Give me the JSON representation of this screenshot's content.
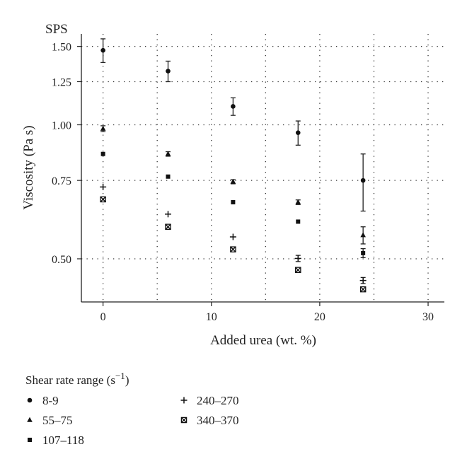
{
  "chart_data": {
    "type": "scatter",
    "corner_label": "SPS",
    "xlabel": "Added urea (wt. %)",
    "ylabel": "Viscosity (Pa s)",
    "x_ticks": [
      0,
      10,
      20,
      30
    ],
    "y_ticks": [
      0.5,
      0.75,
      1.0,
      1.25,
      1.5
    ],
    "y_tick_labels": [
      "0.50",
      "0.75",
      "1.00",
      "1.25",
      "1.50"
    ],
    "xlim": [
      -2,
      31.5
    ],
    "ylim": [
      0.4,
      1.6
    ],
    "y_scale": "log",
    "grid": "dotted, at x = 0, 5, 10, 15, 20, 25, 30 and at y ticks",
    "x": [
      0,
      6,
      12,
      18,
      24
    ],
    "series": [
      {
        "name": "8-9",
        "marker": "circle",
        "values": [
          1.47,
          1.32,
          1.1,
          0.96,
          0.75
        ],
        "error": [
          0.09,
          0.07,
          0.05,
          0.06,
          0.11
        ]
      },
      {
        "name": "55–75",
        "marker": "triangle",
        "values": [
          0.98,
          0.86,
          0.745,
          0.67,
          0.565
        ],
        "error": [
          0.015,
          0.01,
          0.008,
          0.008,
          0.025
        ]
      },
      {
        "name": "107–118",
        "marker": "square",
        "values": [
          0.86,
          0.765,
          0.67,
          0.606,
          0.515
        ],
        "error": [
          0,
          0,
          0,
          0,
          0.012
        ]
      },
      {
        "name": "240–270",
        "marker": "plus",
        "values": [
          0.725,
          0.63,
          0.56,
          0.501,
          0.447
        ],
        "error": [
          0,
          0,
          0,
          0.008,
          0.007
        ]
      },
      {
        "name": "340–370",
        "marker": "boxed-x",
        "values": [
          0.68,
          0.59,
          0.525,
          0.472,
          0.427
        ],
        "error": [
          0,
          0,
          0,
          0,
          0
        ]
      }
    ],
    "legend": {
      "title": "Shear rate range (s",
      "title_exponent": "−1",
      "title_close": ")",
      "placement": "bottom"
    }
  }
}
